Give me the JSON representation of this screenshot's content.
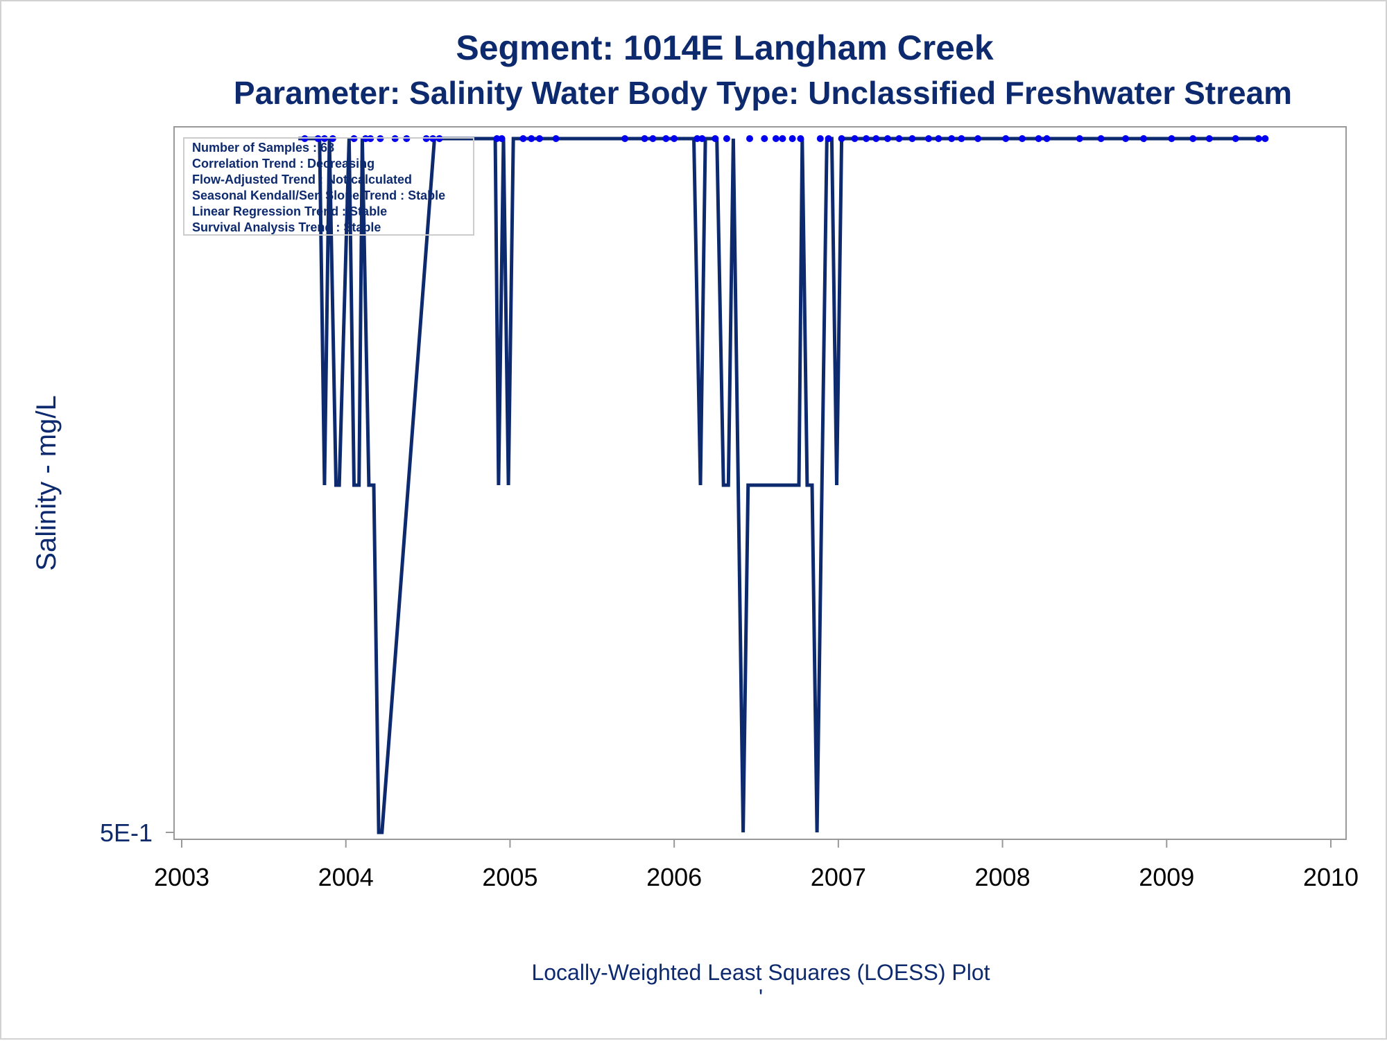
{
  "chart_data": {
    "type": "line",
    "title": "Segment: 1014E  Langham Creek",
    "subtitle": "Parameter: Salinity   Water Body Type: Unclassified Freshwater Stream",
    "xlabel": "Locally-Weighted Least Squares (LOESS) Plot",
    "ylabel": "Salinity - mg/L",
    "footnote": "'",
    "xlim": [
      2003,
      2010
    ],
    "x_ticks": [
      "2003",
      "2004",
      "2005",
      "2006",
      "2007",
      "2008",
      "2009",
      "2010"
    ],
    "y_ticks": [
      "5E-1"
    ],
    "y_levels": {
      "low": 0.5,
      "mid": 1,
      "high": 2
    },
    "ylim": [
      0.5,
      2
    ],
    "grid": false,
    "legend": {
      "placement": "top-left",
      "lines": [
        "Number of Samples : 68",
        "Correlation Trend : Decreasing",
        "Flow-Adjusted Trend : Not calculated",
        "Seasonal Kendall/Sen Slope Trend : Stable",
        "Linear Regression Trend : Stable",
        "Survival Analysis Trend : Stable"
      ]
    },
    "series": [
      {
        "kind": "loess-line",
        "color": "#0e2a6e",
        "x": [
          2003.71,
          2003.84,
          2003.87,
          2003.9,
          2003.94,
          2003.96,
          2004.02,
          2004.05,
          2004.08,
          2004.1,
          2004.14,
          2004.17,
          2004.2,
          2004.22,
          2004.54,
          2004.57,
          2004.91,
          2004.93,
          2004.96,
          2004.99,
          2005.02,
          2005.05,
          2006.12,
          2006.16,
          2006.19,
          2006.26,
          2006.3,
          2006.33,
          2006.36,
          2006.42,
          2006.45,
          2006.76,
          2006.78,
          2006.81,
          2006.84,
          2006.87,
          2006.93,
          2006.96,
          2006.99,
          2007.02,
          2007.04,
          2009.62
        ],
        "y": [
          2,
          2,
          1,
          2,
          1,
          1,
          2,
          1,
          1,
          2,
          1,
          1,
          0.5,
          0.5,
          2,
          2,
          2,
          1,
          2,
          1,
          2,
          2,
          2,
          1,
          2,
          2,
          1,
          1,
          2,
          0.5,
          1,
          1,
          2,
          1,
          1,
          0.5,
          2,
          2,
          1,
          2,
          2,
          2
        ]
      },
      {
        "kind": "samples",
        "color": "#0000ee",
        "x": [
          2003.75,
          2003.83,
          2003.87,
          2003.92,
          2004.05,
          2004.12,
          2004.15,
          2004.21,
          2004.3,
          2004.37,
          2004.49,
          2004.53,
          2004.57,
          2004.92,
          2004.95,
          2005.08,
          2005.13,
          2005.18,
          2005.28,
          2005.7,
          2005.82,
          2005.87,
          2005.95,
          2006.0,
          2006.14,
          2006.17,
          2006.25,
          2006.32,
          2006.46,
          2006.55,
          2006.62,
          2006.66,
          2006.72,
          2006.77,
          2006.89,
          2006.94,
          2007.02,
          2007.1,
          2007.17,
          2007.23,
          2007.3,
          2007.37,
          2007.45,
          2007.55,
          2007.61,
          2007.69,
          2007.75,
          2007.85,
          2008.02,
          2008.12,
          2008.22,
          2008.27,
          2008.47,
          2008.6,
          2008.75,
          2008.86,
          2009.03,
          2009.16,
          2009.26,
          2009.42,
          2009.56,
          2009.6
        ],
        "y": [
          2,
          2,
          2,
          2,
          2,
          2,
          2,
          2,
          2,
          2,
          2,
          2,
          2,
          2,
          2,
          2,
          2,
          2,
          2,
          2,
          2,
          2,
          2,
          2,
          2,
          2,
          2,
          2,
          2,
          2,
          2,
          2,
          2,
          2,
          2,
          2,
          2,
          2,
          2,
          2,
          2,
          2,
          2,
          2,
          2,
          2,
          2,
          2,
          2,
          2,
          2,
          2,
          2,
          2,
          2,
          2,
          2,
          2,
          2,
          2,
          2,
          2
        ]
      }
    ]
  }
}
